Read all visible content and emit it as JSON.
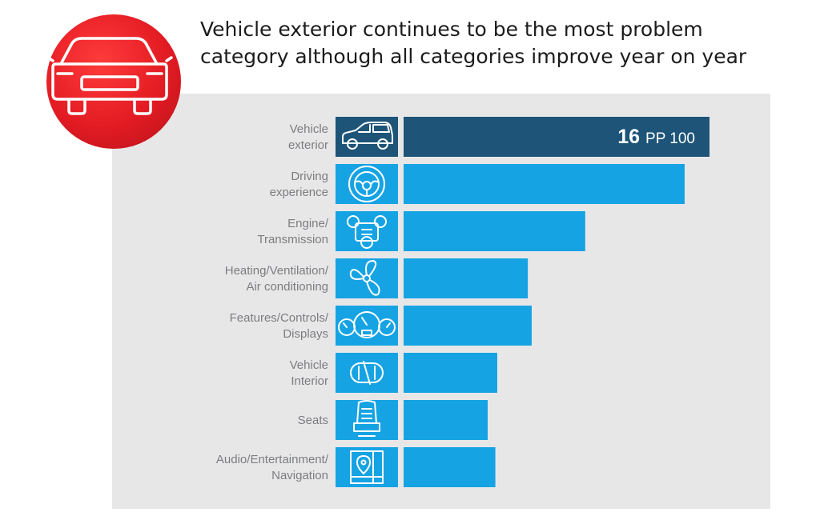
{
  "title_lines": [
    "Vehicle exterior continues to be the most problem",
    "category although all categories improve year on year"
  ],
  "badge_icon": "car-front-icon",
  "colors": {
    "highlight": "#1d5478",
    "bar": "#16a3e3",
    "panel": "#e7e7e8",
    "badge": "#e31b23",
    "label": "#7c7d80"
  },
  "chart_data": {
    "type": "bar",
    "orientation": "horizontal",
    "unit": "PP 100",
    "categories": [
      [
        "Vehicle",
        "exterior"
      ],
      [
        "Driving",
        "experience"
      ],
      [
        "Engine/",
        "Transmission"
      ],
      [
        "Heating/Ventilation/",
        "Air conditioning"
      ],
      [
        "Features/Controls/",
        "Displays"
      ],
      [
        "Vehicle",
        "Interior"
      ],
      [
        "Seats"
      ],
      [
        "Audio/Entertainment/",
        "Navigation"
      ]
    ],
    "icons": [
      "car-side-icon",
      "steering-wheel-icon",
      "engine-icon",
      "fan-icon",
      "dashboard-gauges-icon",
      "car-interior-icon",
      "seat-icon",
      "map-pin-navigation-icon"
    ],
    "values": [
      16,
      14.7,
      9.5,
      6.5,
      6.7,
      4.9,
      4.4,
      4.8
    ],
    "highlight_index": 0,
    "data_labels": [
      {
        "index": 0,
        "number": "16",
        "unit": "PP 100"
      }
    ],
    "xlim": [
      0,
      16
    ]
  }
}
